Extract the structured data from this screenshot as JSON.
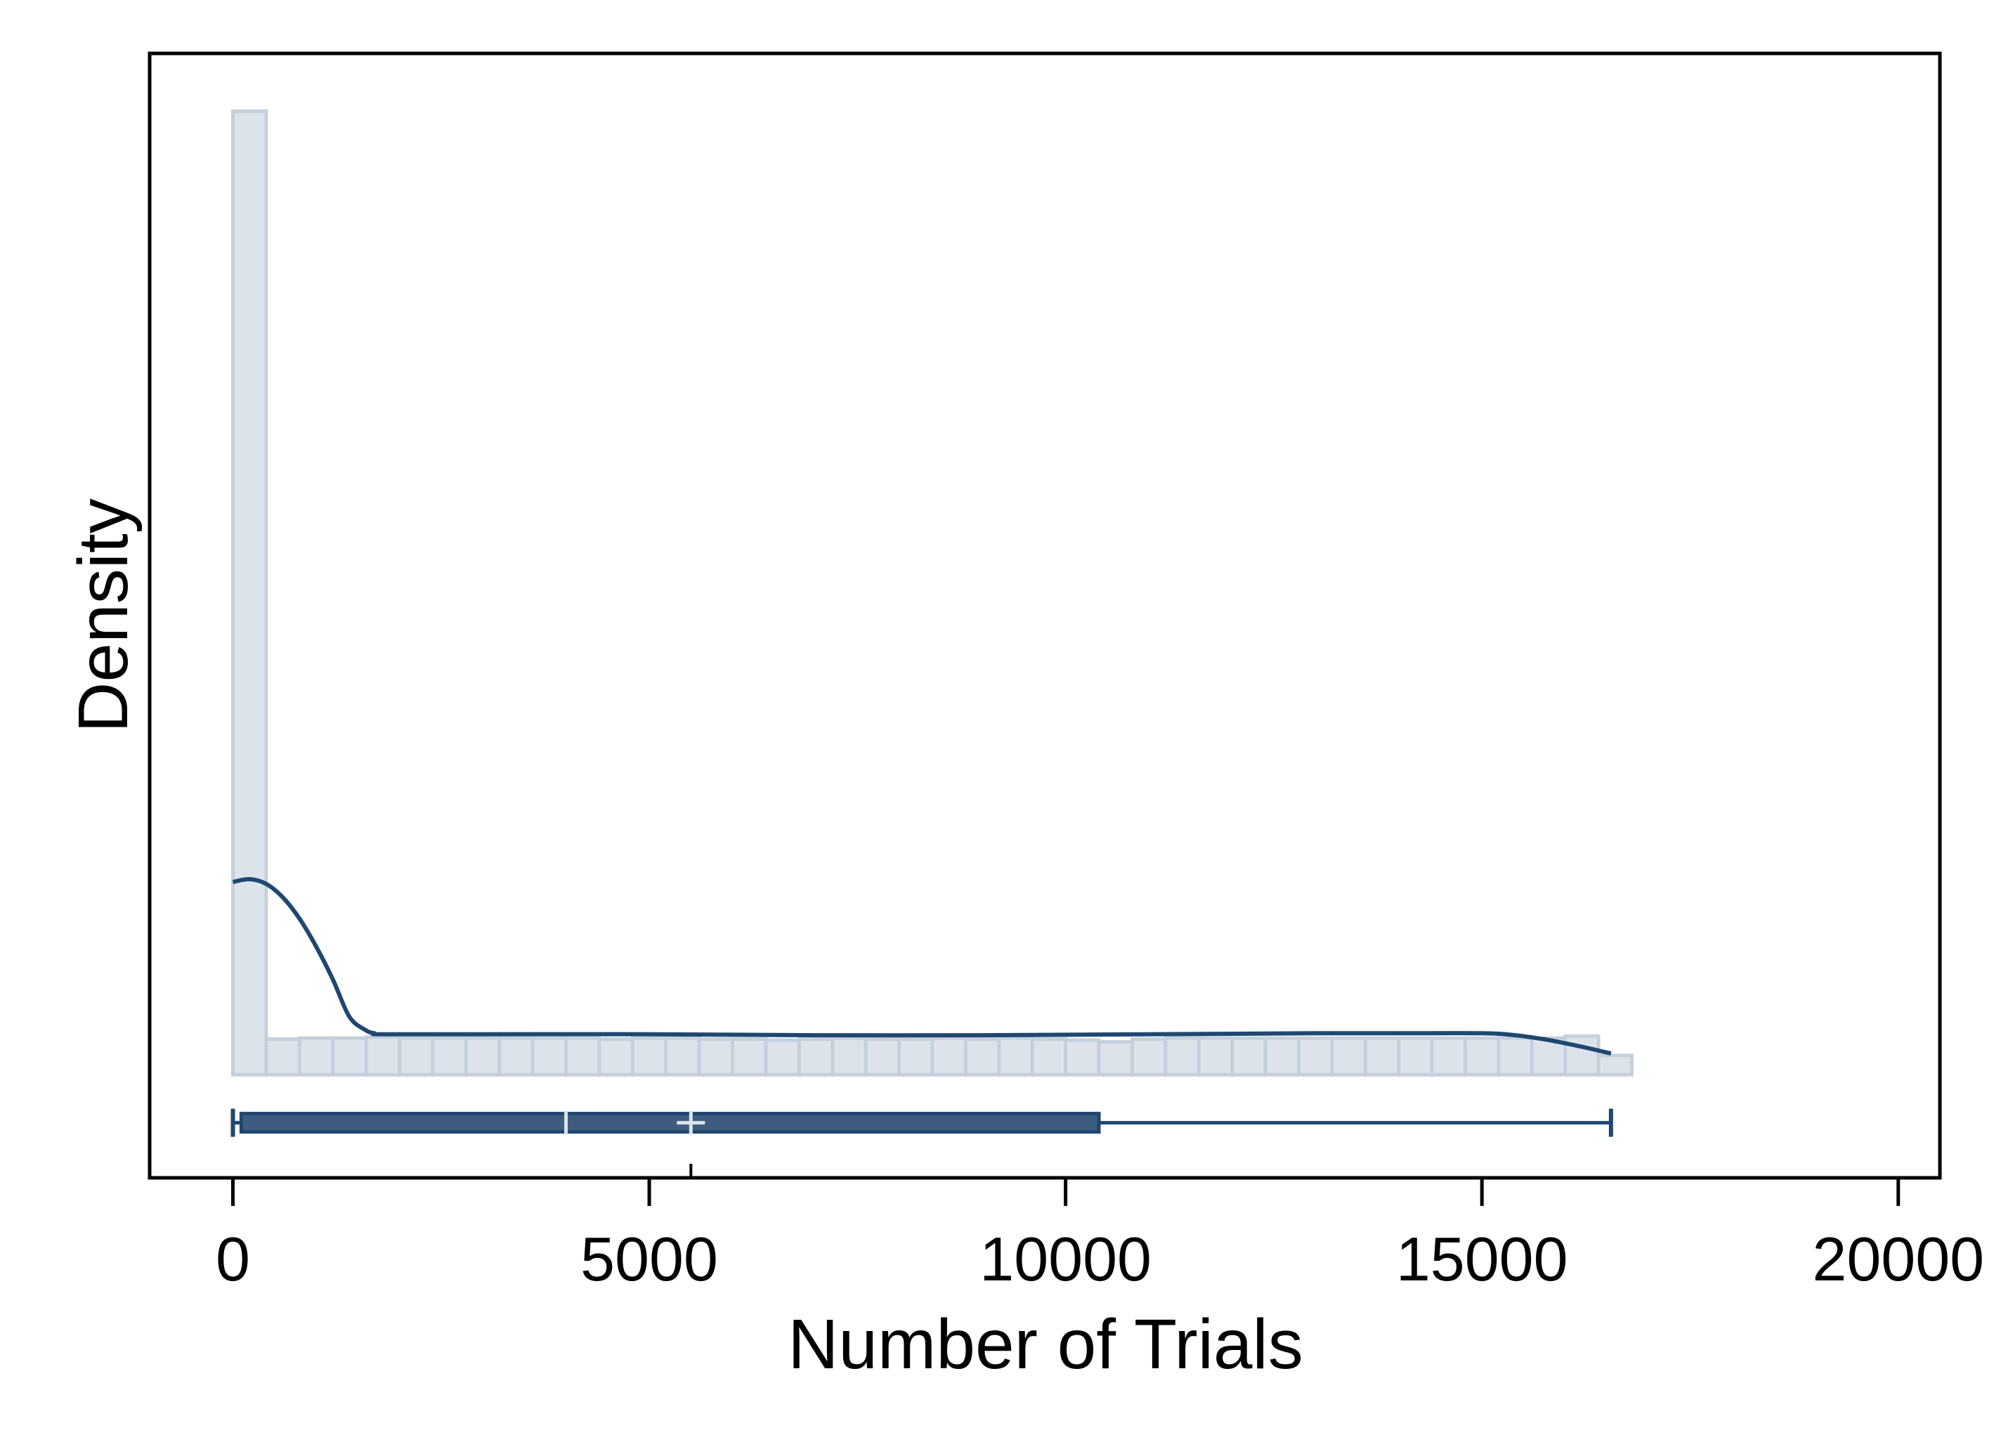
{
  "chart_data": {
    "type": "histogram",
    "title": "",
    "xlabel": "Number of Trials",
    "ylabel": "Density",
    "xlim": [
      -1000,
      20500
    ],
    "ylim": [
      -0.107,
      1.06
    ],
    "grid": false,
    "x_ticks": [
      0,
      5000,
      10000,
      15000,
      20000
    ],
    "x_tick_labels": [
      "0",
      "5000",
      "10000",
      "15000",
      "20000"
    ],
    "y_ticks": [],
    "histogram": {
      "bin_start": 0,
      "bin_width": 400,
      "values": [
        1.0,
        0.037,
        0.038,
        0.038,
        0.039,
        0.038,
        0.038,
        0.038,
        0.038,
        0.038,
        0.038,
        0.037,
        0.038,
        0.038,
        0.037,
        0.037,
        0.036,
        0.037,
        0.038,
        0.037,
        0.037,
        0.038,
        0.037,
        0.038,
        0.037,
        0.036,
        0.034,
        0.037,
        0.038,
        0.038,
        0.038,
        0.038,
        0.038,
        0.038,
        0.038,
        0.038,
        0.038,
        0.038,
        0.038,
        0.038,
        0.04,
        0.02
      ]
    },
    "density_curve": {
      "x": [
        0,
        200,
        400,
        600,
        800,
        1000,
        1200,
        1400,
        1600,
        1700,
        1800,
        3000,
        5000,
        7000,
        9000,
        11000,
        13000,
        14000,
        15000,
        15400,
        15800,
        16200,
        16550
      ],
      "y": [
        0.2,
        0.203,
        0.198,
        0.184,
        0.162,
        0.133,
        0.099,
        0.06,
        0.046,
        0.043,
        0.042,
        0.042,
        0.042,
        0.041,
        0.041,
        0.042,
        0.043,
        0.043,
        0.043,
        0.041,
        0.036,
        0.029,
        0.022
      ]
    },
    "box_plot": {
      "min": 0,
      "q1": 100,
      "median": 4000,
      "mean": 5500,
      "q3": 10400,
      "max": 16550
    },
    "colors": {
      "histogram_fill": "#dce3eb",
      "histogram_edge": "#c5d0db",
      "curve": "#1f4770",
      "box_fill": "#3d5c80",
      "box_edge": "#1f4770",
      "box_marker": "#dce3eb",
      "axis": "#000000"
    }
  }
}
